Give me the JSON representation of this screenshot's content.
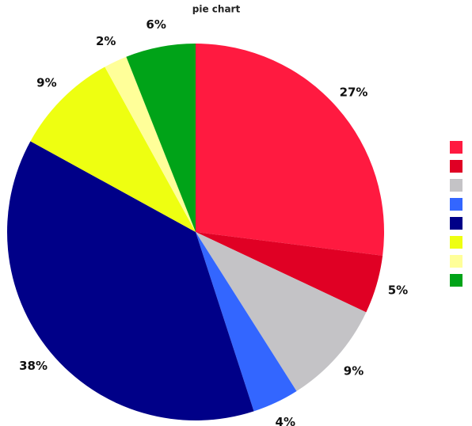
{
  "chart_data": {
    "type": "pie",
    "title": "pie chart",
    "values": [
      27,
      5,
      9,
      4,
      38,
      9,
      2,
      6
    ],
    "value_labels": [
      "27%",
      "5%",
      "9%",
      "4%",
      "38%",
      "9%",
      "2%",
      "6%"
    ],
    "colors": [
      "#ff1a40",
      "#e00024",
      "#c4c3c6",
      "#3366ff",
      "#000088",
      "#eeff11",
      "#ffff99",
      "#00a318"
    ],
    "legend": "right"
  }
}
